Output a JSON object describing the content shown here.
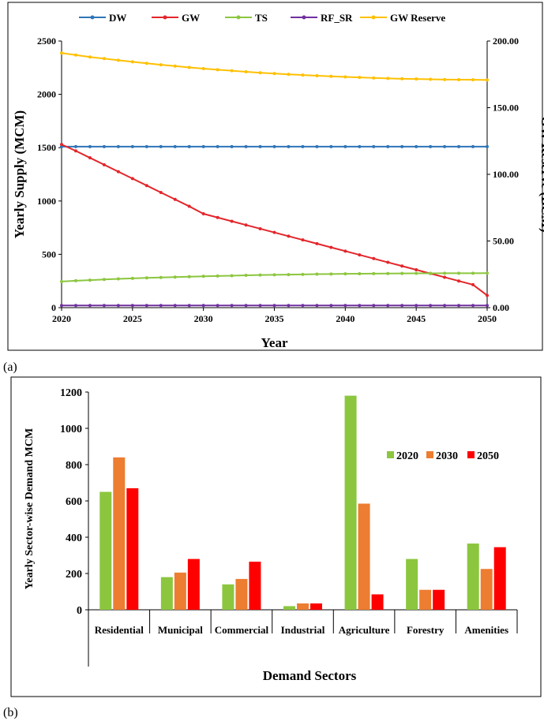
{
  "panels": [
    {
      "label": "(a)"
    },
    {
      "label": "(b)"
    }
  ],
  "chart_data": [
    {
      "type": "line",
      "title": "",
      "xlabel": "Year",
      "ylabel": "Yearly Supply (MCM)",
      "y2label": "GW Reserve (BCM)",
      "xlim": [
        2020,
        2050
      ],
      "ylim": [
        0,
        2500
      ],
      "y2lim": [
        0,
        200
      ],
      "xticks": [
        "2020",
        "2025",
        "2030",
        "2035",
        "2040",
        "2045",
        "2050"
      ],
      "yticks": [
        "0",
        "500",
        "1000",
        "1500",
        "2000",
        "2500"
      ],
      "y2ticks": [
        "0.00",
        "50.00",
        "100.00",
        "150.00",
        "200.00"
      ],
      "legend_position": "top",
      "x": [
        2020,
        2021,
        2022,
        2023,
        2024,
        2025,
        2026,
        2027,
        2028,
        2029,
        2030,
        2031,
        2032,
        2033,
        2034,
        2035,
        2036,
        2037,
        2038,
        2039,
        2040,
        2041,
        2042,
        2043,
        2044,
        2045,
        2046,
        2047,
        2048,
        2049,
        2050
      ],
      "series": [
        {
          "name": "DW",
          "color": "#2E75B6",
          "axis": "left",
          "values": [
            1510,
            1510,
            1510,
            1510,
            1510,
            1510,
            1510,
            1510,
            1510,
            1510,
            1510,
            1510,
            1510,
            1510,
            1510,
            1510,
            1510,
            1510,
            1510,
            1510,
            1510,
            1510,
            1510,
            1510,
            1510,
            1510,
            1510,
            1510,
            1510,
            1510,
            1510
          ]
        },
        {
          "name": "GW",
          "color": "#E3262B",
          "axis": "left",
          "values": [
            1530,
            1470,
            1405,
            1340,
            1275,
            1210,
            1145,
            1080,
            1015,
            950,
            880,
            845,
            810,
            775,
            740,
            705,
            670,
            635,
            600,
            565,
            530,
            495,
            460,
            425,
            390,
            355,
            320,
            285,
            250,
            215,
            115
          ]
        },
        {
          "name": "TS",
          "color": "#8CC63F",
          "axis": "left",
          "values": [
            245,
            252,
            258,
            264,
            270,
            275,
            279,
            283,
            287,
            290,
            294,
            297,
            300,
            303,
            306,
            308,
            310,
            312,
            314,
            315,
            317,
            318,
            319,
            320,
            321,
            322,
            322,
            323,
            323,
            323,
            324
          ]
        },
        {
          "name": "RF_SR",
          "color": "#7030A0",
          "axis": "left",
          "values": [
            20,
            20,
            20,
            20,
            20,
            20,
            20,
            20,
            20,
            20,
            20,
            20,
            20,
            20,
            20,
            20,
            20,
            20,
            20,
            20,
            20,
            20,
            20,
            20,
            20,
            20,
            20,
            20,
            20,
            20,
            20
          ]
        },
        {
          "name": "GW Reserve",
          "color": "#FFC000",
          "axis": "right",
          "values": [
            191,
            189.5,
            188,
            186.8,
            185.6,
            184.4,
            183.3,
            182.2,
            181.2,
            180.2,
            179.3,
            178.5,
            177.7,
            176.9,
            176.2,
            175.6,
            175,
            174.5,
            174,
            173.5,
            173.1,
            172.7,
            172.3,
            172,
            171.7,
            171.5,
            171.3,
            171.1,
            171,
            170.9,
            170.8
          ]
        }
      ]
    },
    {
      "type": "bar",
      "title": "",
      "xlabel": "Demand Sectors",
      "ylabel": "Yearly Sector-wise Demand MCM",
      "ylim": [
        0,
        1200
      ],
      "yticks": [
        "0",
        "200",
        "400",
        "600",
        "800",
        "1000",
        "1200"
      ],
      "legend_position": "right",
      "categories": [
        "Residential",
        "Municipal",
        "Commercial",
        "Industrial",
        "Agriculture",
        "Forestry",
        "Amenities"
      ],
      "series": [
        {
          "name": "2020",
          "color": "#8CC63F",
          "values": [
            650,
            180,
            140,
            20,
            1180,
            280,
            365
          ]
        },
        {
          "name": "2030",
          "color": "#ED7D31",
          "values": [
            840,
            205,
            170,
            35,
            585,
            110,
            225
          ]
        },
        {
          "name": "2050",
          "color": "#FF0000",
          "values": [
            670,
            280,
            265,
            35,
            85,
            110,
            345
          ]
        }
      ]
    }
  ]
}
